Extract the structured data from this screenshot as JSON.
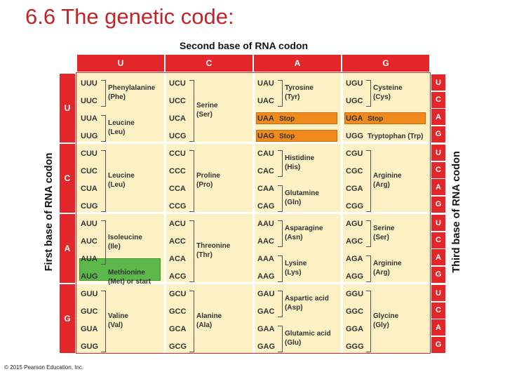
{
  "title": "6.6 The genetic code:",
  "second_base_title": "Second base of RNA codon",
  "first_base_title": "First base of RNA codon",
  "third_base_title": "Third base of RNA codon",
  "copyright": "© 2015 Pearson Education, Inc.",
  "bases": [
    "U",
    "C",
    "A",
    "G"
  ],
  "colors": {
    "header_red": "#e3262a",
    "cell_bg": "#fbf1c4",
    "stop_orange": "#f08a1c",
    "start_green": "#5cb84a"
  },
  "cells": [
    {
      "codons": [
        "UUU",
        "UUC",
        "UUA",
        "UUG"
      ],
      "groups": [
        {
          "text": "Phenylalanine (Phe)",
          "lines": [
            "Phenylalanine",
            "(Phe)"
          ]
        },
        {
          "text": "Leucine (Leu)",
          "lines": [
            "Leucine",
            "(Leu)"
          ]
        }
      ]
    },
    {
      "codons": [
        "UCU",
        "UCC",
        "UCA",
        "UCG"
      ],
      "groups": [
        {
          "lines": [
            "Serine",
            "(Ser)"
          ]
        }
      ]
    },
    {
      "codons": [
        "UAU",
        "UAC",
        "UAA",
        "UAG"
      ],
      "groups": [
        {
          "lines": [
            "Tyrosine",
            "(Tyr)"
          ]
        },
        {
          "lines": [
            "Stop"
          ]
        },
        {
          "lines": [
            "Stop"
          ]
        }
      ]
    },
    {
      "codons": [
        "UGU",
        "UGC",
        "UGA",
        "UGG"
      ],
      "groups": [
        {
          "lines": [
            "Cysteine",
            "(Cys)"
          ]
        },
        {
          "lines": [
            "Stop"
          ]
        },
        {
          "lines": [
            "Tryptophan (Trp)"
          ]
        }
      ]
    },
    {
      "codons": [
        "CUU",
        "CUC",
        "CUA",
        "CUG"
      ],
      "groups": [
        {
          "lines": [
            "Leucine",
            "(Leu)"
          ]
        }
      ]
    },
    {
      "codons": [
        "CCU",
        "CCC",
        "CCA",
        "CCG"
      ],
      "groups": [
        {
          "lines": [
            "Proline",
            "(Pro)"
          ]
        }
      ]
    },
    {
      "codons": [
        "CAU",
        "CAC",
        "CAA",
        "CAG"
      ],
      "groups": [
        {
          "lines": [
            "Histidine",
            "(His)"
          ]
        },
        {
          "lines": [
            "Glutamine",
            "(Gln)"
          ]
        }
      ]
    },
    {
      "codons": [
        "CGU",
        "CGC",
        "CGA",
        "CGG"
      ],
      "groups": [
        {
          "lines": [
            "Arginine",
            "(Arg)"
          ]
        }
      ]
    },
    {
      "codons": [
        "AUU",
        "AUC",
        "AUA",
        "AUG"
      ],
      "groups": [
        {
          "lines": [
            "Isoleucine",
            "(Ile)"
          ]
        },
        {
          "lines": [
            "Methionine",
            "(Met) or start"
          ]
        }
      ]
    },
    {
      "codons": [
        "ACU",
        "ACC",
        "ACA",
        "ACG"
      ],
      "groups": [
        {
          "lines": [
            "Threonine",
            "(Thr)"
          ]
        }
      ]
    },
    {
      "codons": [
        "AAU",
        "AAC",
        "AAA",
        "AAG"
      ],
      "groups": [
        {
          "lines": [
            "Asparagine",
            "(Asn)"
          ]
        },
        {
          "lines": [
            "Lysine",
            "(Lys)"
          ]
        }
      ]
    },
    {
      "codons": [
        "AGU",
        "AGC",
        "AGA",
        "AGG"
      ],
      "groups": [
        {
          "lines": [
            "Serine",
            "(Ser)"
          ]
        },
        {
          "lines": [
            "Arginine",
            "(Arg)"
          ]
        }
      ]
    },
    {
      "codons": [
        "GUU",
        "GUC",
        "GUA",
        "GUG"
      ],
      "groups": [
        {
          "lines": [
            "Valine",
            "(Val)"
          ]
        }
      ]
    },
    {
      "codons": [
        "GCU",
        "GCC",
        "GCA",
        "GCG"
      ],
      "groups": [
        {
          "lines": [
            "Alanine",
            "(Ala)"
          ]
        }
      ]
    },
    {
      "codons": [
        "GAU",
        "GAC",
        "GAA",
        "GAG"
      ],
      "groups": [
        {
          "lines": [
            "Aspartic acid",
            "(Asp)"
          ]
        },
        {
          "lines": [
            "Glutamic acid",
            "(Glu)"
          ]
        }
      ]
    },
    {
      "codons": [
        "GGU",
        "GGC",
        "GGA",
        "GGG"
      ],
      "groups": [
        {
          "lines": [
            "Glycine",
            "(Gly)"
          ]
        }
      ]
    }
  ]
}
